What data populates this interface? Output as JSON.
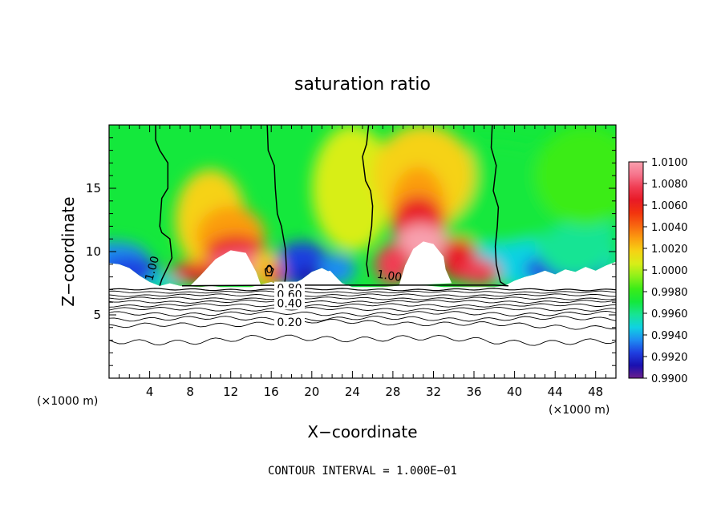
{
  "chart_data": {
    "type": "heatmap",
    "title": "saturation ratio",
    "xlabel": "X−coordinate",
    "ylabel": "Z−coordinate",
    "x_unit_left": "(×1000 m)",
    "x_unit_right": "(×1000 m)",
    "xlim": [
      0,
      50
    ],
    "ylim": [
      0,
      20
    ],
    "x_ticks": [
      4,
      8,
      12,
      16,
      20,
      24,
      28,
      32,
      36,
      40,
      44,
      48
    ],
    "y_ticks": [
      5,
      10,
      15
    ],
    "footnote": "CONTOUR INTERVAL = 1.000E−01",
    "colorbar": {
      "range": [
        0.99,
        1.01
      ],
      "labels": [
        "1.0100",
        "1.0080",
        "1.0060",
        "1.0040",
        "1.0020",
        "1.0000",
        "0.9980",
        "0.9960",
        "0.9940",
        "0.9920",
        "0.9900"
      ],
      "colors": [
        "#6a1f8c",
        "#1a10b0",
        "#1f3fe0",
        "#1e8cf2",
        "#10d2e2",
        "#17e494",
        "#14e83c",
        "#3aec18",
        "#8ef01a",
        "#d8ee18",
        "#f6d214",
        "#fb9d10",
        "#f86510",
        "#f2330e",
        "#e81a26",
        "#f03c52",
        "#f6748c",
        "#f8a0ae"
      ]
    },
    "contour_labels": [
      {
        "text": "1.00",
        "x": 4.6,
        "z": 8.6
      },
      {
        "text": "0",
        "x": 15.8,
        "z": 8.3
      },
      {
        "text": "1.00",
        "x": 27.6,
        "z": 7.8
      },
      {
        "text": "0.80",
        "x": 17.8,
        "z": 6.8
      },
      {
        "text": "0.60",
        "x": 17.8,
        "z": 6.3
      },
      {
        "text": "0.40",
        "x": 17.8,
        "z": 5.6
      },
      {
        "text": "0.20",
        "x": 17.8,
        "z": 4.1
      }
    ]
  }
}
